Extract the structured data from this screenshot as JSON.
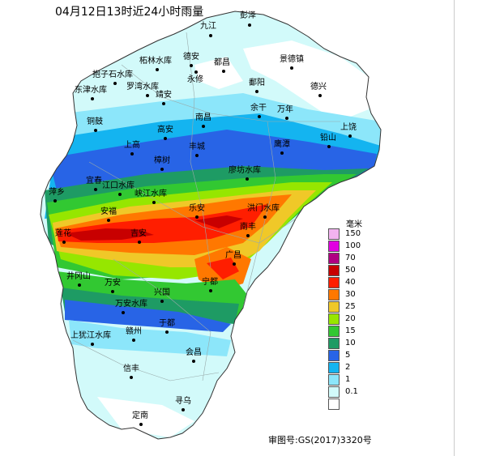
{
  "title": "04月12日13时近24小时雨量",
  "approval_number": "审图号:GS(2017)3320号",
  "legend": {
    "unit": "毫米",
    "levels": [
      {
        "label": "150",
        "color": "#f3b3f0"
      },
      {
        "label": "100",
        "color": "#e100e1"
      },
      {
        "label": "70",
        "color": "#b00082"
      },
      {
        "label": "50",
        "color": "#c80000"
      },
      {
        "label": "40",
        "color": "#ff1e00"
      },
      {
        "label": "30",
        "color": "#ff7800"
      },
      {
        "label": "25",
        "color": "#f0c828"
      },
      {
        "label": "20",
        "color": "#96e600"
      },
      {
        "label": "15",
        "color": "#32c832"
      },
      {
        "label": "10",
        "color": "#1e9b64"
      },
      {
        "label": "5",
        "color": "#2864e6"
      },
      {
        "label": "2",
        "color": "#14b4f0"
      },
      {
        "label": "1",
        "color": "#8ce6fa"
      },
      {
        "label": "0.1",
        "color": "#d2fafa"
      },
      {
        "label": "",
        "color": "#ffffff"
      }
    ]
  },
  "places": [
    {
      "name": "彭泽"
    },
    {
      "name": "九江"
    },
    {
      "name": "柘林水库"
    },
    {
      "name": "德安"
    },
    {
      "name": "都昌"
    },
    {
      "name": "景德镇"
    },
    {
      "name": "抱子石水库"
    },
    {
      "name": "永修"
    },
    {
      "name": "东津水库"
    },
    {
      "name": "罗湾水库"
    },
    {
      "name": "鄱阳"
    },
    {
      "name": "德兴"
    },
    {
      "name": "靖安"
    },
    {
      "name": "余干"
    },
    {
      "name": "万年"
    },
    {
      "name": "铜鼓"
    },
    {
      "name": "南昌"
    },
    {
      "name": "上饶"
    },
    {
      "name": "高安"
    },
    {
      "name": "铅山"
    },
    {
      "name": "上高"
    },
    {
      "name": "丰城"
    },
    {
      "name": "鹰潭"
    },
    {
      "name": "樟树"
    },
    {
      "name": "宜春"
    },
    {
      "name": "廖坊水库"
    },
    {
      "name": "江口水库"
    },
    {
      "name": "萍乡"
    },
    {
      "name": "峡江水库"
    },
    {
      "name": "安福"
    },
    {
      "name": "乐安"
    },
    {
      "name": "洪门水库"
    },
    {
      "name": "南丰"
    },
    {
      "name": "莲花"
    },
    {
      "name": "吉安"
    },
    {
      "name": "广昌"
    },
    {
      "name": "井冈山"
    },
    {
      "name": "万安"
    },
    {
      "name": "宁都"
    },
    {
      "name": "兴国"
    },
    {
      "name": "万安水库"
    },
    {
      "name": "于都"
    },
    {
      "name": "上犹江水库"
    },
    {
      "name": "赣州"
    },
    {
      "name": "会昌"
    },
    {
      "name": "信丰"
    },
    {
      "name": "寻乌"
    },
    {
      "name": "定南"
    }
  ]
}
